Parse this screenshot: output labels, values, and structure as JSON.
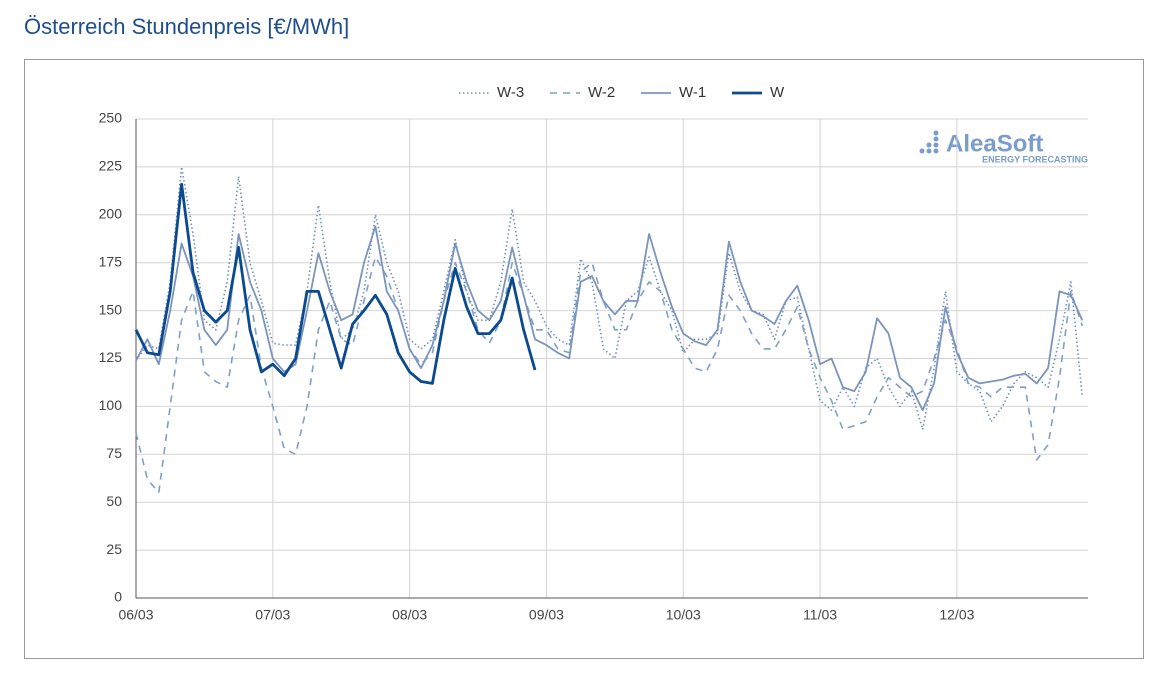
{
  "chart_data": {
    "type": "line",
    "title": "Österreich Stundenpreis [€/MWh]",
    "logo": {
      "name": "AleaSoft",
      "tagline": "ENERGY FORECASTING"
    },
    "x": [
      0,
      2,
      4,
      6,
      8,
      10,
      12,
      14,
      16,
      18,
      20,
      22,
      24,
      26,
      28,
      30,
      32,
      34,
      36,
      38,
      40,
      42,
      44,
      46,
      48,
      50,
      52,
      54,
      56,
      58,
      60,
      62,
      64,
      66,
      68,
      70,
      72,
      74,
      76,
      78,
      80,
      82,
      84,
      86,
      88,
      90,
      92,
      94,
      96,
      98,
      100,
      102,
      104,
      106,
      108,
      110,
      112,
      114,
      116,
      118,
      120,
      122,
      124,
      126,
      128,
      130,
      132,
      134,
      136,
      138,
      140,
      142,
      144,
      146,
      148,
      150,
      152,
      154,
      156,
      158,
      160,
      162,
      164,
      166
    ],
    "xlim": [
      0,
      167
    ],
    "xticks": [
      {
        "value": 0,
        "label": "06/03"
      },
      {
        "value": 24,
        "label": "07/03"
      },
      {
        "value": 48,
        "label": "08/03"
      },
      {
        "value": 72,
        "label": "09/03"
      },
      {
        "value": 96,
        "label": "10/03"
      },
      {
        "value": 120,
        "label": "11/03"
      },
      {
        "value": 144,
        "label": "12/03"
      }
    ],
    "ylim": [
      0,
      250
    ],
    "yticks": [
      0,
      25,
      50,
      75,
      100,
      125,
      150,
      175,
      200,
      225,
      250
    ],
    "grid": true,
    "legend": "top",
    "series": [
      {
        "name": "W-3",
        "color": "#7090c0",
        "dash": "dotted",
        "width": 1.6,
        "values": [
          124,
          132,
          130,
          165,
          225,
          190,
          145,
          140,
          165,
          220,
          175,
          155,
          133,
          132,
          132,
          160,
          205,
          165,
          135,
          140,
          160,
          200,
          175,
          160,
          135,
          130,
          135,
          160,
          187,
          160,
          145,
          145,
          165,
          203,
          165,
          155,
          142,
          135,
          132,
          177,
          165,
          130,
          125,
          155,
          160,
          178,
          160,
          150,
          128,
          135,
          135,
          138,
          180,
          160,
          150,
          148,
          135,
          155,
          157,
          130,
          103,
          98,
          110,
          100,
          120,
          125,
          110,
          100,
          108,
          88,
          120,
          160,
          118,
          112,
          108,
          92,
          100,
          112,
          118,
          115,
          110,
          135,
          165,
          105
        ]
      },
      {
        "name": "W-2",
        "color": "#7f9fcb",
        "dash": "dashed",
        "width": 1.6,
        "values": [
          86,
          62,
          55,
          100,
          145,
          160,
          118,
          113,
          110,
          145,
          158,
          120,
          100,
          78,
          75,
          100,
          140,
          155,
          135,
          132,
          155,
          178,
          168,
          150,
          130,
          122,
          128,
          155,
          175,
          160,
          140,
          133,
          145,
          175,
          158,
          140,
          140,
          130,
          128,
          170,
          175,
          155,
          140,
          140,
          155,
          165,
          160,
          140,
          130,
          120,
          118,
          130,
          158,
          150,
          138,
          130,
          130,
          140,
          152,
          130,
          115,
          103,
          88,
          90,
          92,
          105,
          115,
          110,
          105,
          108,
          125,
          145,
          130,
          112,
          110,
          105,
          110,
          110,
          110,
          72,
          80,
          115,
          160,
          142
        ]
      },
      {
        "name": "W-1",
        "color": "#7a94bc",
        "dash": "solid",
        "width": 1.8,
        "values": [
          124,
          135,
          122,
          150,
          185,
          168,
          140,
          132,
          140,
          190,
          165,
          150,
          125,
          118,
          122,
          150,
          180,
          160,
          145,
          148,
          175,
          194,
          160,
          150,
          130,
          120,
          132,
          155,
          185,
          165,
          150,
          145,
          155,
          183,
          158,
          135,
          132,
          128,
          125,
          165,
          168,
          155,
          148,
          155,
          155,
          190,
          170,
          152,
          138,
          134,
          132,
          140,
          186,
          165,
          150,
          147,
          143,
          155,
          163,
          145,
          122,
          125,
          110,
          108,
          118,
          146,
          138,
          115,
          110,
          98,
          112,
          152,
          128,
          115,
          112,
          113,
          114,
          116,
          117,
          112,
          120,
          160,
          158,
          145
        ]
      },
      {
        "name": "W",
        "color": "#0b4a8f",
        "dash": "solid",
        "width": 2.8,
        "values": [
          140,
          128,
          127,
          160,
          216,
          170,
          150,
          144,
          150,
          183,
          140,
          118,
          122,
          116,
          125,
          160,
          160,
          140,
          120,
          143,
          150,
          158,
          148,
          128,
          118,
          113,
          112,
          145,
          172,
          152,
          138,
          138,
          145,
          167,
          140,
          119,
          null,
          null,
          null,
          null,
          null,
          null,
          null,
          null,
          null,
          null,
          null,
          null,
          null,
          null,
          null,
          null,
          null,
          null,
          null,
          null,
          null,
          null,
          null,
          null,
          null,
          null,
          null,
          null,
          null,
          null,
          null,
          null,
          null,
          null,
          null,
          null,
          null,
          null,
          null,
          null,
          null,
          null,
          null,
          null,
          null,
          null,
          null,
          null
        ]
      }
    ]
  }
}
